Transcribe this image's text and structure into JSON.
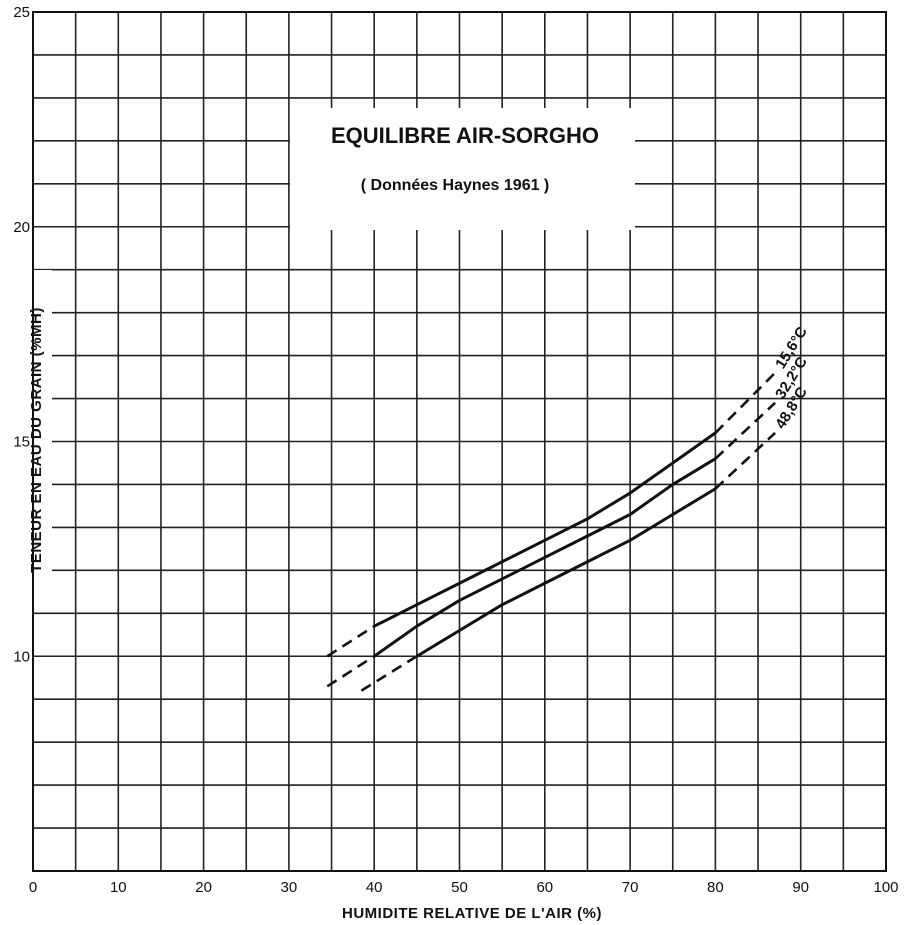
{
  "chart_data": {
    "type": "line",
    "title": "EQUILIBRE AIR-SORGHO",
    "subtitle": "( Données Haynes 1961 )",
    "xlabel": "HUMIDITE RELATIVE DE L'AIR (%)",
    "ylabel": "TENEUR EN EAU DU GRAIN (%MH)",
    "xlim": [
      0,
      100
    ],
    "ylim": [
      5,
      25
    ],
    "x_ticks": [
      "0",
      "10",
      "20",
      "30",
      "40",
      "50",
      "60",
      "70",
      "80",
      "90",
      "100"
    ],
    "y_ticks": [
      "10",
      "15",
      "20",
      "25"
    ],
    "grid": true,
    "series": [
      {
        "name": "15,6°C",
        "measured": [
          [
            40,
            10.7
          ],
          [
            45,
            11.2
          ],
          [
            50,
            11.7
          ],
          [
            55,
            12.2
          ],
          [
            60,
            12.7
          ],
          [
            65,
            13.2
          ],
          [
            70,
            13.8
          ],
          [
            75,
            14.5
          ],
          [
            80,
            15.2
          ]
        ],
        "extrapolated_low": [
          [
            34.5,
            10.0
          ],
          [
            40,
            10.7
          ]
        ],
        "extrapolated_high": [
          [
            80,
            15.2
          ],
          [
            87,
            16.6
          ]
        ]
      },
      {
        "name": "32,2°C",
        "measured": [
          [
            40,
            10.0
          ],
          [
            45,
            10.7
          ],
          [
            50,
            11.3
          ],
          [
            55,
            11.8
          ],
          [
            60,
            12.3
          ],
          [
            65,
            12.8
          ],
          [
            70,
            13.3
          ],
          [
            75,
            14.0
          ],
          [
            80,
            14.6
          ]
        ],
        "extrapolated_low": [
          [
            34.5,
            9.3
          ],
          [
            40,
            10.0
          ]
        ],
        "extrapolated_high": [
          [
            80,
            14.6
          ],
          [
            87,
            15.9
          ]
        ]
      },
      {
        "name": "48,8°C",
        "measured": [
          [
            45,
            10.0
          ],
          [
            50,
            10.6
          ],
          [
            55,
            11.2
          ],
          [
            60,
            11.7
          ],
          [
            65,
            12.2
          ],
          [
            70,
            12.7
          ],
          [
            75,
            13.3
          ],
          [
            80,
            13.9
          ]
        ],
        "extrapolated_low": [
          [
            38.5,
            9.2
          ],
          [
            45,
            10.0
          ]
        ],
        "extrapolated_high": [
          [
            80,
            13.9
          ],
          [
            87,
            15.2
          ]
        ]
      }
    ]
  }
}
